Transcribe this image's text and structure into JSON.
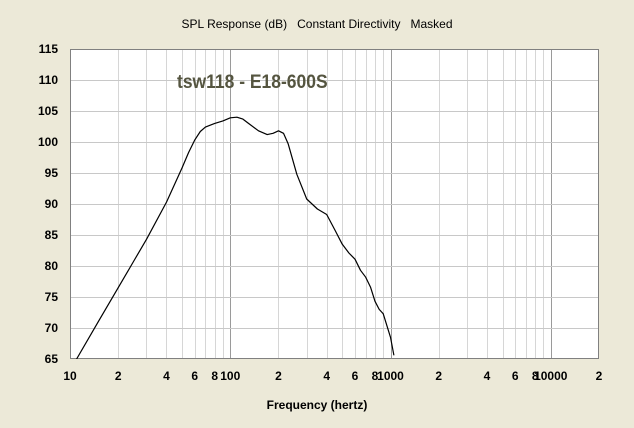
{
  "chart_data": {
    "type": "line",
    "title": "SPL Response (dB)   Constant Directivity   Masked",
    "xlabel": "Frequency (hertz)",
    "ylabel": "",
    "annotation": "tsw118 - E18-600S",
    "x_scale": "log",
    "xlim": [
      10,
      20000
    ],
    "ylim": [
      65,
      115
    ],
    "grid": true,
    "y_ticks": [
      65,
      70,
      75,
      80,
      85,
      90,
      95,
      100,
      105,
      110,
      115
    ],
    "x_ticks": [
      {
        "value": 10,
        "label": "10"
      },
      {
        "value": 20,
        "label": "2"
      },
      {
        "value": 40,
        "label": "4"
      },
      {
        "value": 60,
        "label": "6"
      },
      {
        "value": 80,
        "label": "8"
      },
      {
        "value": 100,
        "label": "100"
      },
      {
        "value": 200,
        "label": "2"
      },
      {
        "value": 400,
        "label": "4"
      },
      {
        "value": 600,
        "label": "6"
      },
      {
        "value": 800,
        "label": "8"
      },
      {
        "value": 1000,
        "label": "1000"
      },
      {
        "value": 2000,
        "label": "2"
      },
      {
        "value": 4000,
        "label": "4"
      },
      {
        "value": 6000,
        "label": "6"
      },
      {
        "value": 8000,
        "label": "8"
      },
      {
        "value": 10000,
        "label": "10000"
      },
      {
        "value": 20000,
        "label": "2"
      }
    ],
    "series": [
      {
        "color": "#000000",
        "x": [
          11,
          15,
          20,
          25,
          30,
          40,
          50,
          55,
          60,
          65,
          70,
          80,
          90,
          100,
          110,
          120,
          130,
          150,
          170,
          185,
          200,
          215,
          230,
          260,
          300,
          350,
          400,
          450,
          500,
          550,
          600,
          650,
          700,
          750,
          800,
          850,
          900,
          1000,
          1050
        ],
        "y": [
          65.0,
          71.0,
          76.5,
          80.8,
          84.3,
          90.3,
          95.8,
          98.3,
          100.3,
          101.7,
          102.4,
          103.0,
          103.4,
          103.9,
          104.0,
          103.7,
          103.0,
          101.8,
          101.2,
          101.4,
          101.8,
          101.4,
          99.7,
          94.8,
          90.8,
          89.2,
          88.3,
          85.8,
          83.5,
          82.1,
          81.1,
          79.3,
          78.2,
          76.6,
          74.3,
          73.0,
          72.3,
          68.5,
          65.6
        ]
      }
    ]
  }
}
